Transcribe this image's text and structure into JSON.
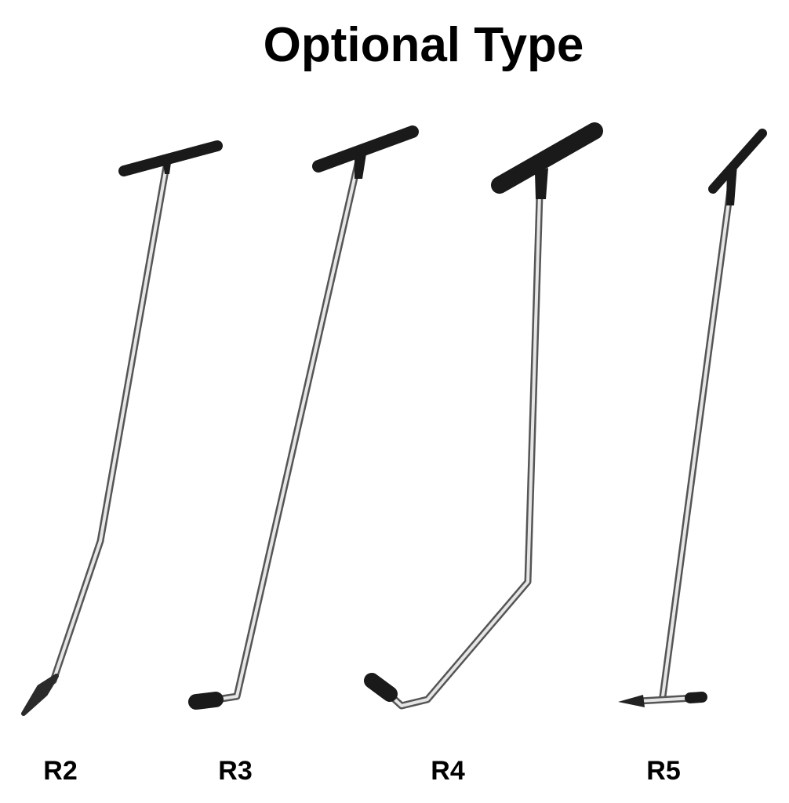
{
  "title": "Optional Type",
  "items": [
    {
      "label": "R2"
    },
    {
      "label": "R3"
    },
    {
      "label": "R4"
    },
    {
      "label": "R5"
    }
  ]
}
